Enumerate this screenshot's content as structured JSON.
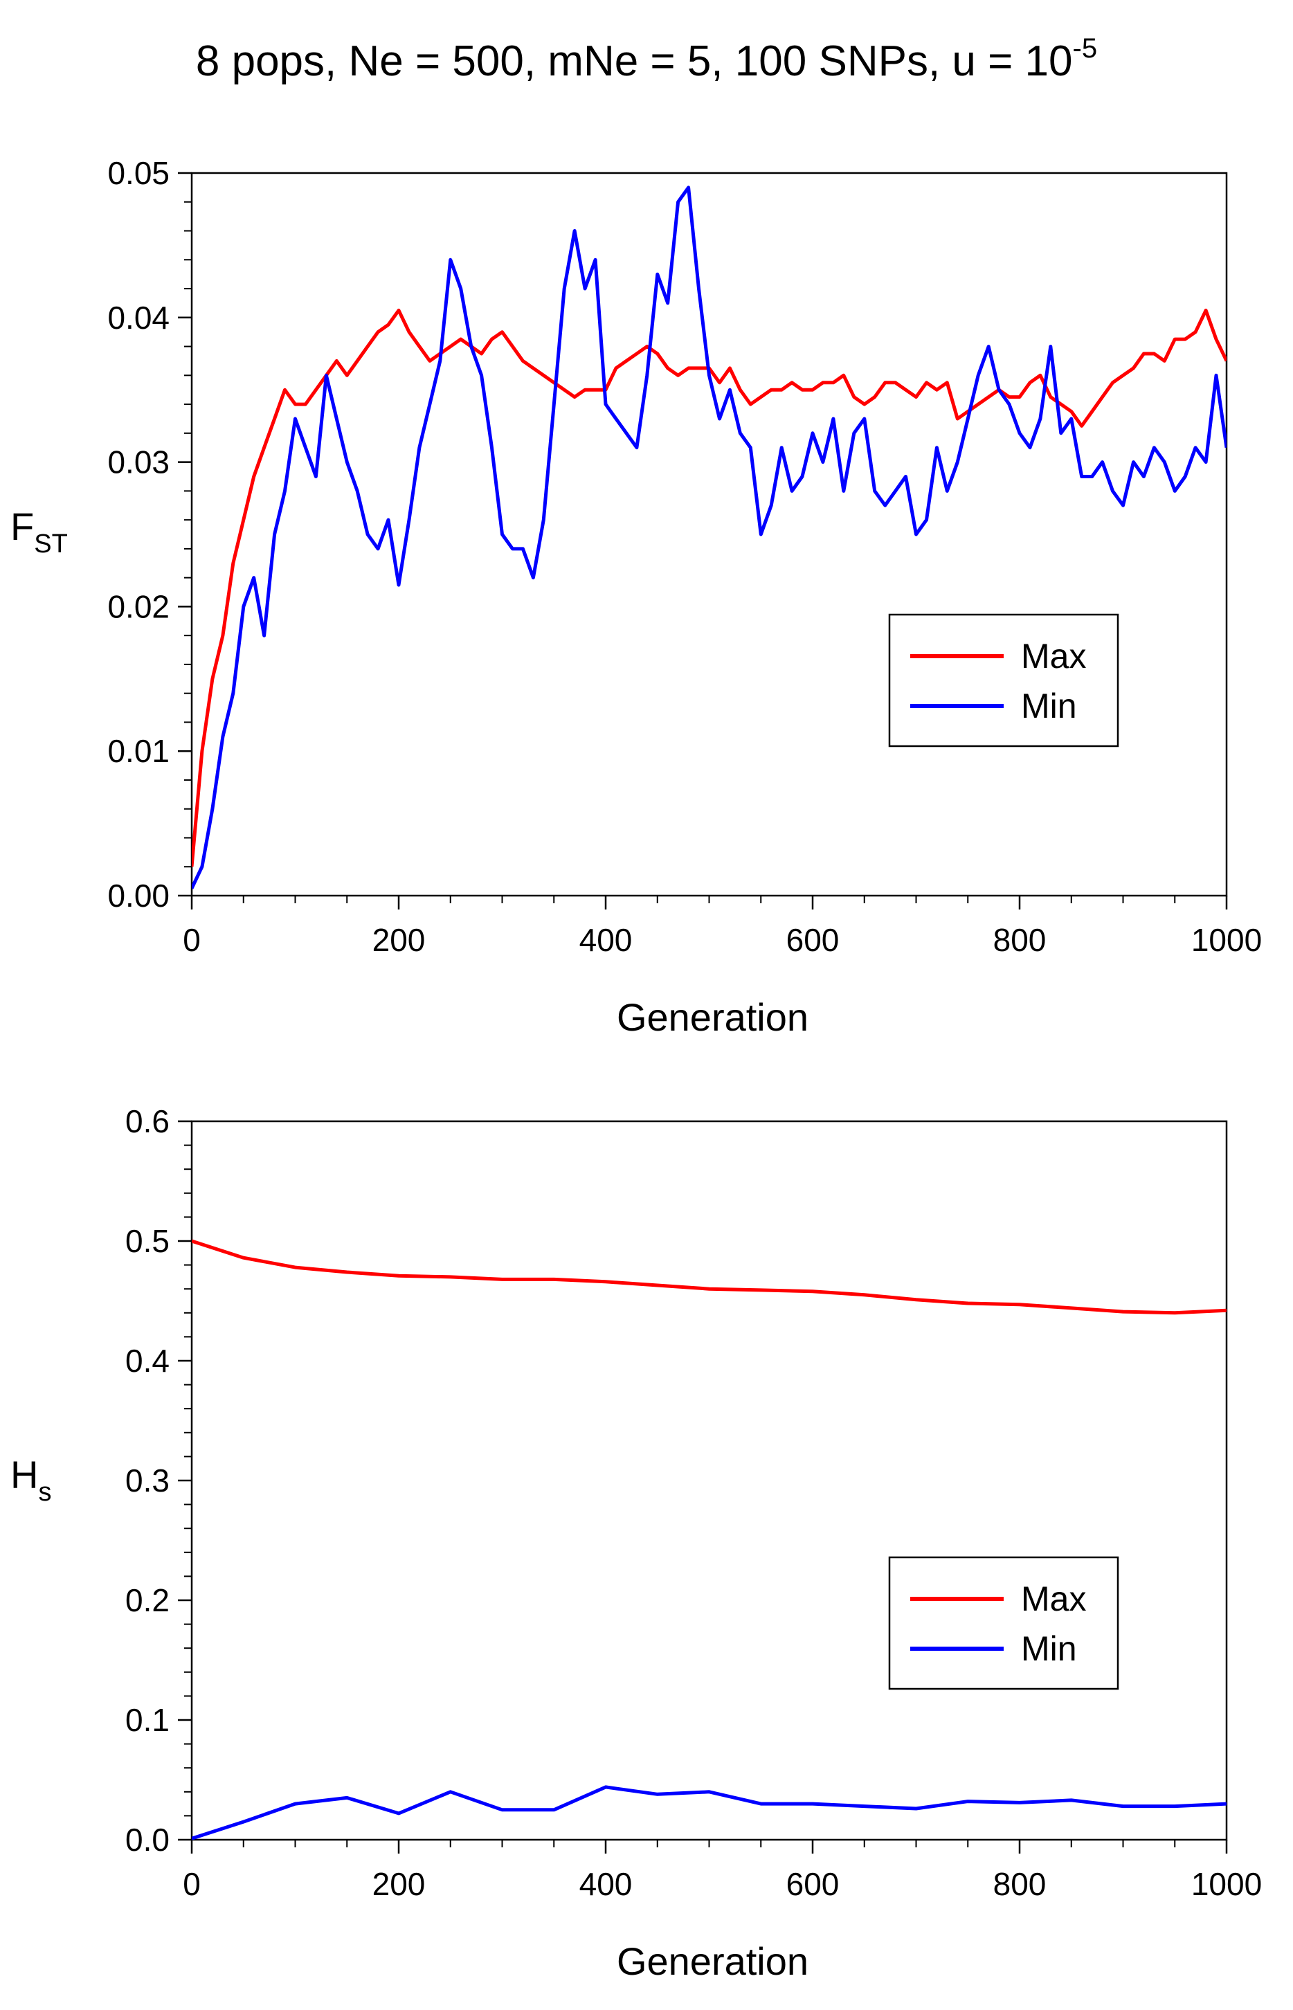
{
  "title_main": "8 pops, Ne = 500, mNe = 5, 100 SNPs, u = 10",
  "title_exp": "-5",
  "chart_data": [
    {
      "type": "line",
      "xlabel": "Generation",
      "ylabel": "F",
      "ylabel_sub": "ST",
      "xlim": [
        0,
        1000
      ],
      "ylim": [
        0,
        0.05
      ],
      "xticks": [
        "0",
        "200",
        "400",
        "600",
        "800",
        "1000"
      ],
      "yticks": [
        "0.00",
        "0.01",
        "0.02",
        "0.03",
        "0.04",
        "0.05"
      ],
      "legend": "right-middle",
      "series": [
        {
          "name": "Max",
          "color": "#ff0000",
          "x": [
            0,
            10,
            20,
            30,
            40,
            50,
            60,
            70,
            80,
            90,
            100,
            110,
            120,
            130,
            140,
            150,
            160,
            170,
            180,
            190,
            200,
            210,
            220,
            230,
            240,
            250,
            260,
            270,
            280,
            290,
            300,
            310,
            320,
            330,
            340,
            350,
            360,
            370,
            380,
            390,
            400,
            410,
            420,
            430,
            440,
            450,
            460,
            470,
            480,
            490,
            500,
            510,
            520,
            530,
            540,
            550,
            560,
            570,
            580,
            590,
            600,
            610,
            620,
            630,
            640,
            650,
            660,
            670,
            680,
            690,
            700,
            710,
            720,
            730,
            740,
            750,
            760,
            770,
            780,
            790,
            800,
            810,
            820,
            830,
            840,
            850,
            860,
            870,
            880,
            890,
            900,
            910,
            920,
            930,
            940,
            950,
            960,
            970,
            980,
            990,
            1000
          ],
          "y": [
            0.002,
            0.01,
            0.015,
            0.018,
            0.023,
            0.026,
            0.029,
            0.031,
            0.033,
            0.035,
            0.034,
            0.034,
            0.035,
            0.036,
            0.037,
            0.036,
            0.037,
            0.038,
            0.039,
            0.0395,
            0.0405,
            0.039,
            0.038,
            0.037,
            0.0375,
            0.038,
            0.0385,
            0.038,
            0.0375,
            0.0385,
            0.039,
            0.038,
            0.037,
            0.0365,
            0.036,
            0.0355,
            0.035,
            0.0345,
            0.035,
            0.035,
            0.035,
            0.0365,
            0.037,
            0.0375,
            0.038,
            0.0375,
            0.0365,
            0.036,
            0.0365,
            0.0365,
            0.0365,
            0.0355,
            0.0365,
            0.035,
            0.034,
            0.0345,
            0.035,
            0.035,
            0.0355,
            0.035,
            0.035,
            0.0355,
            0.0355,
            0.036,
            0.0345,
            0.034,
            0.0345,
            0.0355,
            0.0355,
            0.035,
            0.0345,
            0.0355,
            0.035,
            0.0355,
            0.033,
            0.0335,
            0.034,
            0.0345,
            0.035,
            0.0345,
            0.0345,
            0.0355,
            0.036,
            0.0345,
            0.034,
            0.0335,
            0.0325,
            0.0335,
            0.0345,
            0.0355,
            0.036,
            0.0365,
            0.0375,
            0.0375,
            0.037,
            0.0385,
            0.0385,
            0.039,
            0.0405,
            0.0385,
            0.037
          ]
        },
        {
          "name": "Min",
          "color": "#0000ff",
          "x": [
            0,
            10,
            20,
            30,
            40,
            50,
            60,
            70,
            80,
            90,
            100,
            110,
            120,
            130,
            140,
            150,
            160,
            170,
            180,
            190,
            200,
            210,
            220,
            230,
            240,
            250,
            260,
            270,
            280,
            290,
            300,
            310,
            320,
            330,
            340,
            350,
            360,
            370,
            380,
            390,
            400,
            410,
            420,
            430,
            440,
            450,
            460,
            470,
            480,
            490,
            500,
            510,
            520,
            530,
            540,
            550,
            560,
            570,
            580,
            590,
            600,
            610,
            620,
            630,
            640,
            650,
            660,
            670,
            680,
            690,
            700,
            710,
            720,
            730,
            740,
            750,
            760,
            770,
            780,
            790,
            800,
            810,
            820,
            830,
            840,
            850,
            860,
            870,
            880,
            890,
            900,
            910,
            920,
            930,
            940,
            950,
            960,
            970,
            980,
            990,
            1000
          ],
          "y": [
            0.0005,
            0.002,
            0.006,
            0.011,
            0.014,
            0.02,
            0.022,
            0.018,
            0.025,
            0.028,
            0.033,
            0.031,
            0.029,
            0.036,
            0.033,
            0.03,
            0.028,
            0.025,
            0.024,
            0.026,
            0.0215,
            0.026,
            0.031,
            0.034,
            0.037,
            0.044,
            0.042,
            0.038,
            0.036,
            0.031,
            0.025,
            0.024,
            0.024,
            0.022,
            0.026,
            0.034,
            0.042,
            0.046,
            0.042,
            0.044,
            0.034,
            0.033,
            0.032,
            0.031,
            0.036,
            0.043,
            0.041,
            0.048,
            0.049,
            0.042,
            0.036,
            0.033,
            0.035,
            0.032,
            0.031,
            0.025,
            0.027,
            0.031,
            0.028,
            0.029,
            0.032,
            0.03,
            0.033,
            0.028,
            0.032,
            0.033,
            0.028,
            0.027,
            0.028,
            0.029,
            0.025,
            0.026,
            0.031,
            0.028,
            0.03,
            0.033,
            0.036,
            0.038,
            0.035,
            0.034,
            0.032,
            0.031,
            0.033,
            0.038,
            0.032,
            0.033,
            0.029,
            0.029,
            0.03,
            0.028,
            0.027,
            0.03,
            0.029,
            0.031,
            0.03,
            0.028,
            0.029,
            0.031,
            0.03,
            0.036,
            0.031
          ]
        }
      ]
    },
    {
      "type": "line",
      "xlabel": "Generation",
      "ylabel": "H",
      "ylabel_sub": "s",
      "xlim": [
        0,
        1000
      ],
      "ylim": [
        0,
        0.6
      ],
      "xticks": [
        "0",
        "200",
        "400",
        "600",
        "800",
        "1000"
      ],
      "yticks": [
        "0.0",
        "0.1",
        "0.2",
        "0.3",
        "0.4",
        "0.5",
        "0.6"
      ],
      "legend": "right-lower",
      "series": [
        {
          "name": "Max",
          "color": "#ff0000",
          "x": [
            0,
            50,
            100,
            150,
            200,
            250,
            300,
            350,
            400,
            450,
            500,
            550,
            600,
            650,
            700,
            750,
            800,
            850,
            900,
            950,
            1000
          ],
          "y": [
            0.5,
            0.486,
            0.478,
            0.474,
            0.471,
            0.47,
            0.468,
            0.468,
            0.466,
            0.463,
            0.46,
            0.459,
            0.458,
            0.455,
            0.451,
            0.448,
            0.447,
            0.444,
            0.441,
            0.44,
            0.442
          ]
        },
        {
          "name": "Min",
          "color": "#0000ff",
          "x": [
            0,
            50,
            100,
            150,
            200,
            250,
            300,
            350,
            400,
            450,
            500,
            550,
            600,
            650,
            700,
            750,
            800,
            850,
            900,
            950,
            1000
          ],
          "y": [
            0.001,
            0.015,
            0.03,
            0.035,
            0.022,
            0.04,
            0.025,
            0.025,
            0.044,
            0.038,
            0.04,
            0.03,
            0.03,
            0.028,
            0.026,
            0.032,
            0.031,
            0.033,
            0.028,
            0.028,
            0.03
          ]
        }
      ]
    }
  ]
}
